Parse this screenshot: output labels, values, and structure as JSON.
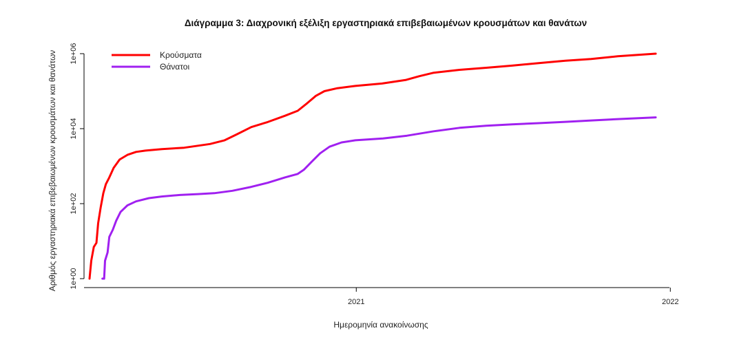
{
  "chart_data": {
    "type": "line",
    "title": "Διάγραμμα 3: Διαχρονική εξέλιξη εργαστηριακά επιβεβαιωμένων κρουσμάτων και θανάτων",
    "xlabel": "Ημερομηνία ανακοίνωσης",
    "ylabel": "Αριθμός εργαστηριακά επιβεβαιωμένων κρουσμάτων και θανάτων",
    "y_scale": "log",
    "ylim": [
      1,
      1000000
    ],
    "xlim": [
      "2020-02-26",
      "2021-12-31"
    ],
    "y_ticks": [
      {
        "value": 1,
        "label": "1e+00"
      },
      {
        "value": 100,
        "label": "1e+02"
      },
      {
        "value": 10000,
        "label": "1e+04"
      },
      {
        "value": 1000000,
        "label": "1e+06"
      }
    ],
    "x_ticks": [
      {
        "value": "2021-01-01",
        "label": "2021"
      },
      {
        "value": "2022-01-01",
        "label": "2022"
      }
    ],
    "legend_position": "top-left",
    "grid": false,
    "series": [
      {
        "name": "Κρούσματα",
        "color": "#ff0000",
        "points": [
          [
            "2020-02-26",
            1
          ],
          [
            "2020-02-28",
            3
          ],
          [
            "2020-03-02",
            7
          ],
          [
            "2020-03-05",
            9
          ],
          [
            "2020-03-07",
            30
          ],
          [
            "2020-03-10",
            80
          ],
          [
            "2020-03-13",
            190
          ],
          [
            "2020-03-16",
            330
          ],
          [
            "2020-03-20",
            500
          ],
          [
            "2020-03-25",
            900
          ],
          [
            "2020-04-01",
            1500
          ],
          [
            "2020-04-10",
            2000
          ],
          [
            "2020-04-20",
            2400
          ],
          [
            "2020-05-01",
            2600
          ],
          [
            "2020-05-20",
            2850
          ],
          [
            "2020-06-15",
            3100
          ],
          [
            "2020-07-15",
            3900
          ],
          [
            "2020-08-01",
            4900
          ],
          [
            "2020-08-15",
            7000
          ],
          [
            "2020-09-01",
            11000
          ],
          [
            "2020-09-20",
            15000
          ],
          [
            "2020-10-10",
            22000
          ],
          [
            "2020-10-25",
            30000
          ],
          [
            "2020-11-05",
            48000
          ],
          [
            "2020-11-15",
            75000
          ],
          [
            "2020-11-25",
            100000
          ],
          [
            "2020-12-10",
            120000
          ],
          [
            "2020-12-31",
            138000
          ],
          [
            "2021-01-31",
            160000
          ],
          [
            "2021-02-28",
            200000
          ],
          [
            "2021-03-15",
            250000
          ],
          [
            "2021-04-01",
            310000
          ],
          [
            "2021-05-01",
            370000
          ],
          [
            "2021-06-01",
            420000
          ],
          [
            "2021-07-01",
            480000
          ],
          [
            "2021-08-01",
            560000
          ],
          [
            "2021-09-01",
            650000
          ],
          [
            "2021-10-01",
            720000
          ],
          [
            "2021-11-01",
            850000
          ],
          [
            "2021-12-15",
            1000000
          ]
        ]
      },
      {
        "name": "Θάνατοι",
        "color": "#a020f0",
        "points": [
          [
            "2020-03-12",
            1
          ],
          [
            "2020-03-14",
            1
          ],
          [
            "2020-03-15",
            3
          ],
          [
            "2020-03-18",
            5
          ],
          [
            "2020-03-20",
            13
          ],
          [
            "2020-03-24",
            20
          ],
          [
            "2020-03-28",
            35
          ],
          [
            "2020-04-02",
            60
          ],
          [
            "2020-04-10",
            90
          ],
          [
            "2020-04-20",
            115
          ],
          [
            "2020-05-05",
            140
          ],
          [
            "2020-05-20",
            155
          ],
          [
            "2020-06-10",
            170
          ],
          [
            "2020-07-01",
            180
          ],
          [
            "2020-07-20",
            190
          ],
          [
            "2020-08-10",
            220
          ],
          [
            "2020-09-01",
            280
          ],
          [
            "2020-09-20",
            360
          ],
          [
            "2020-10-10",
            500
          ],
          [
            "2020-10-25",
            620
          ],
          [
            "2020-11-01",
            800
          ],
          [
            "2020-11-10",
            1300
          ],
          [
            "2020-11-20",
            2200
          ],
          [
            "2020-12-01",
            3300
          ],
          [
            "2020-12-15",
            4300
          ],
          [
            "2020-12-31",
            4900
          ],
          [
            "2021-02-01",
            5500
          ],
          [
            "2021-03-01",
            6500
          ],
          [
            "2021-04-01",
            8500
          ],
          [
            "2021-05-01",
            10500
          ],
          [
            "2021-06-01",
            12000
          ],
          [
            "2021-07-01",
            13000
          ],
          [
            "2021-08-01",
            14000
          ],
          [
            "2021-09-01",
            15200
          ],
          [
            "2021-10-01",
            16500
          ],
          [
            "2021-11-01",
            18000
          ],
          [
            "2021-12-15",
            20000
          ]
        ]
      }
    ]
  }
}
